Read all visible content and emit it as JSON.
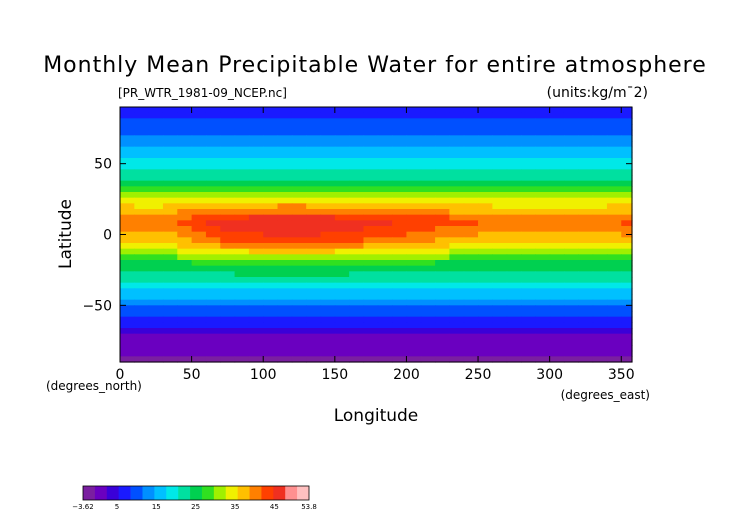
{
  "chart_data": {
    "type": "heatmap",
    "title": "Monthly Mean Precipitable Water for entire atmosphere",
    "subtitle": "[PR_WTR_1981-09_NCEP.nc]",
    "units": "(units:kg/m¯2)",
    "xlabel": "Longitude",
    "ylabel": "Latitude",
    "x_unit_note": "(degrees_east)",
    "y_unit_note": "(degrees_north)",
    "xlim": [
      0,
      357.5
    ],
    "ylim": [
      -90,
      90
    ],
    "x_ticks": [
      0,
      50,
      100,
      150,
      200,
      250,
      300,
      350
    ],
    "y_ticks": [
      -50,
      0,
      50
    ],
    "x_tick_labels": [
      "0",
      "50",
      "100",
      "150",
      "200",
      "250",
      "300",
      "350"
    ],
    "y_tick_labels": [
      "−50",
      "0",
      "50"
    ],
    "colorbar": {
      "min": -3.62,
      "max": 53.8,
      "tick_values": [
        -3.62,
        5,
        15,
        25,
        35,
        45,
        53.8
      ],
      "tick_labels": [
        "−3.62",
        "5",
        "15",
        "25",
        "35",
        "45",
        "53.8"
      ],
      "colors": [
        "#7a1fa0",
        "#6a00c0",
        "#3a00d8",
        "#1a1aff",
        "#0050ff",
        "#0090ff",
        "#00c0ff",
        "#00e8e8",
        "#00e0a0",
        "#00d050",
        "#30e020",
        "#a0f000",
        "#f0f000",
        "#ffc000",
        "#ff8000",
        "#ff4000",
        "#f03020",
        "#ff9090",
        "#ffc0c0"
      ]
    },
    "grid": false,
    "legend": "colorbar bottom-left",
    "lat_band_profile": {
      "lat": [
        88,
        80,
        70,
        60,
        50,
        40,
        30,
        20,
        15,
        10,
        5,
        0,
        -5,
        -10,
        -15,
        -20,
        -30,
        -40,
        -50,
        -55,
        -60,
        -65,
        -70,
        -75,
        -80,
        -88
      ],
      "value": [
        6,
        9,
        12,
        16,
        19,
        23,
        30,
        37,
        40,
        44,
        43,
        41,
        39,
        35,
        31,
        27,
        22,
        17,
        12,
        10,
        8,
        5,
        3,
        1,
        0,
        -1
      ]
    }
  }
}
